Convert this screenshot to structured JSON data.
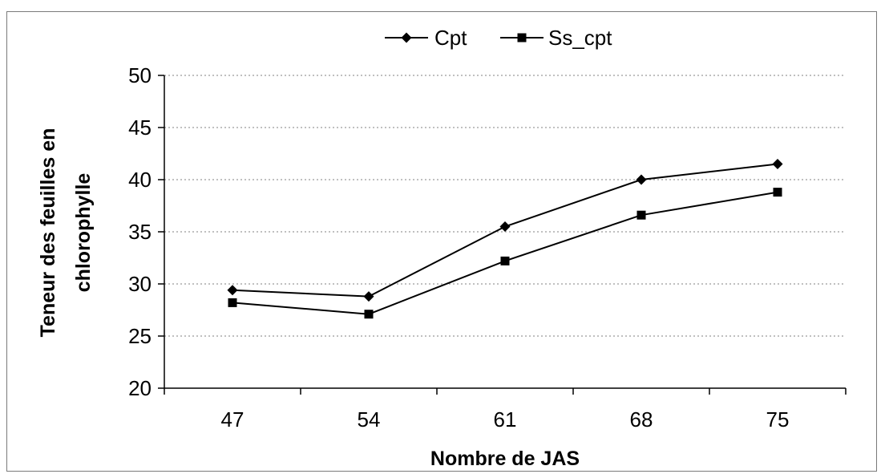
{
  "chart_data": {
    "type": "line",
    "title": "",
    "xlabel": "Nombre de JAS",
    "ylabel": [
      "Teneur des feuilles  en",
      "chlorophylle"
    ],
    "categories": [
      "47",
      "54",
      "61",
      "68",
      "75"
    ],
    "ylim": [
      20,
      50
    ],
    "yticks": [
      "20",
      "25",
      "30",
      "35",
      "40",
      "45",
      "50"
    ],
    "grid": true,
    "legend_position": "top",
    "series": [
      {
        "name": "Cpt",
        "marker": "diamond",
        "values": [
          29.4,
          28.8,
          35.5,
          40.0,
          41.5
        ]
      },
      {
        "name": "Ss_cpt",
        "marker": "square",
        "values": [
          28.2,
          27.1,
          32.2,
          36.6,
          38.8
        ]
      }
    ],
    "colors": {
      "line": "#000000",
      "grid": "#808080",
      "background": "#ffffff"
    }
  }
}
